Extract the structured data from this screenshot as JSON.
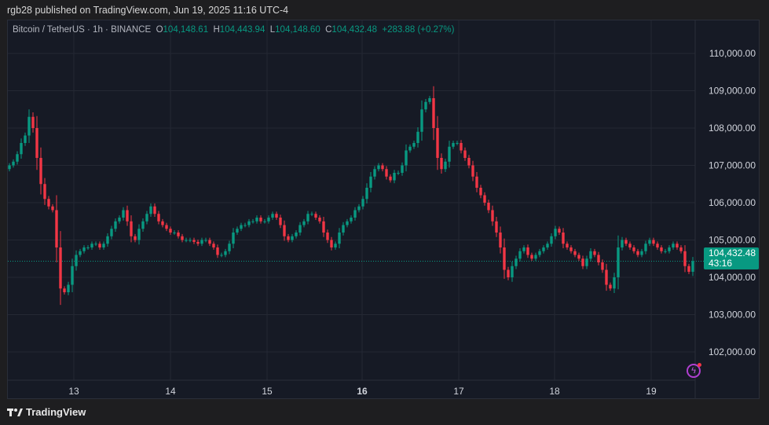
{
  "header": {
    "published": "rgb28 published on TradingView.com, Jun 19, 2025 11:16 UTC-4"
  },
  "legend": {
    "symbol": "Bitcoin / TetherUS · 1h · BINANCE",
    "o_label": "O",
    "o": "104,148.61",
    "h_label": "H",
    "h": "104,443.94",
    "l_label": "L",
    "l": "104,148.60",
    "c_label": "C",
    "c": "104,432.48",
    "change": "+283.88 (+0.27%)"
  },
  "price_tag": {
    "price": "104,432.48",
    "countdown": "43:16"
  },
  "footer": {
    "brand": "TradingView"
  },
  "colors": {
    "up": "#089981",
    "down": "#f23645",
    "background": "#161a25",
    "grid": "#242833"
  },
  "icons": {
    "alert": "lightning-icon",
    "logo": "tradingview-logo-icon"
  },
  "chart_data": {
    "type": "candlestick",
    "title": "Bitcoin / TetherUS · 1h · BINANCE",
    "interval": "1h",
    "ylim": [
      101400,
      110800
    ],
    "y_ticks": [
      "110,000.00",
      "109,000.00",
      "108,000.00",
      "107,000.00",
      "106,000.00",
      "105,000.00",
      "104,000.00",
      "103,000.00",
      "102,000.00"
    ],
    "y_tick_values": [
      110000,
      109000,
      108000,
      107000,
      106000,
      105000,
      104000,
      103000,
      102000
    ],
    "x_ticks": [
      "13",
      "14",
      "15",
      "16",
      "17",
      "18",
      "19"
    ],
    "last_price": 104432.48,
    "grid": true,
    "close": [
      107000,
      107100,
      107300,
      107600,
      107800,
      108300,
      108000,
      107200,
      106500,
      106100,
      105900,
      105800,
      104800,
      103700,
      103600,
      103800,
      104300,
      104600,
      104700,
      104800,
      104800,
      104900,
      104900,
      104800,
      104900,
      105100,
      105300,
      105500,
      105600,
      105800,
      105500,
      105100,
      105000,
      105300,
      105500,
      105700,
      105900,
      105700,
      105500,
      105400,
      105300,
      105200,
      105200,
      105100,
      105000,
      105000,
      105000,
      104950,
      104900,
      105000,
      105000,
      104900,
      104800,
      104600,
      104600,
      104700,
      104900,
      105200,
      105300,
      105400,
      105400,
      105500,
      105500,
      105600,
      105500,
      105500,
      105600,
      105700,
      105600,
      105400,
      105100,
      105000,
      105100,
      105200,
      105400,
      105500,
      105700,
      105700,
      105600,
      105500,
      105200,
      105000,
      104800,
      104900,
      105200,
      105400,
      105500,
      105600,
      105800,
      105900,
      106100,
      106400,
      106700,
      106900,
      107000,
      106900,
      106700,
      106600,
      106800,
      106800,
      107000,
      107400,
      107500,
      107600,
      107900,
      108500,
      108700,
      108800,
      108000,
      107200,
      106900,
      107100,
      107500,
      107600,
      107600,
      107400,
      107200,
      107000,
      106700,
      106400,
      106200,
      106000,
      105800,
      105500,
      105200,
      104800,
      104200,
      104000,
      104300,
      104500,
      104700,
      104800,
      104600,
      104500,
      104600,
      104700,
      104800,
      104900,
      105100,
      105300,
      105200,
      104900,
      104800,
      104700,
      104600,
      104500,
      104300,
      104500,
      104700,
      104600,
      104400,
      104200,
      103800,
      103700,
      104000,
      104800,
      105000,
      104900,
      104800,
      104700,
      104600,
      104700,
      104900,
      105000,
      104900,
      104800,
      104700,
      104700,
      104800,
      104900,
      104800,
      104700,
      104300,
      104148.61,
      104432.48
    ]
  }
}
